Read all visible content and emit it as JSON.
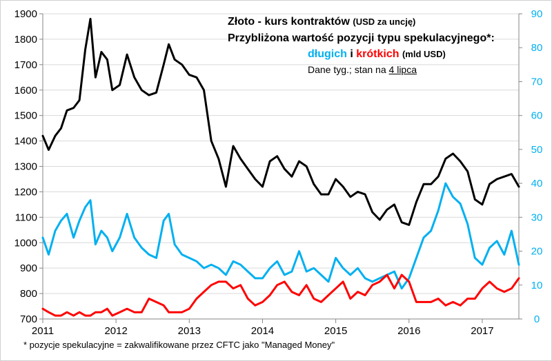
{
  "title": {
    "line1_main": "Złoto - kurs kontraktów",
    "line1_unit": "(USD za uncję)",
    "line2": "Przybliżona wartość pozycji typu spekulacyjnego*:",
    "long_label": "długich",
    "connector": "i",
    "short_label": "krótkich",
    "value_unit": "(mld USD)",
    "note_prefix": "Dane tyg.; stan na",
    "note_date": "4 lipca"
  },
  "footnote": "* pozycje spekulacyjne = zakwalifikowane przez CFTC jako \"Managed Money\"",
  "colors": {
    "price": "#000000",
    "long": "#00b0f0",
    "short": "#ff0000",
    "axis_right": "#00b0f0",
    "grid": "#d9d9d9"
  },
  "chart_data": {
    "type": "line",
    "x_axis": {
      "ticks": [
        "2011",
        "2012",
        "2013",
        "2014",
        "2015",
        "2016",
        "2017"
      ],
      "range": [
        "2011-01",
        "2017-07"
      ]
    },
    "y_left": {
      "ticks": [
        "700",
        "800",
        "900",
        "1000",
        "1100",
        "1200",
        "1300",
        "1400",
        "1500",
        "1600",
        "1700",
        "1800",
        "1900"
      ],
      "ylim": [
        700,
        1900
      ]
    },
    "y_right": {
      "ticks": [
        "0",
        "10",
        "20",
        "30",
        "40",
        "50",
        "60",
        "70",
        "80",
        "90"
      ],
      "ylim": [
        0,
        90
      ]
    },
    "grid": true,
    "series": [
      {
        "axis": "left",
        "color": "#000000",
        "x": [
          2011.0,
          2011.08,
          2011.17,
          2011.25,
          2011.33,
          2011.42,
          2011.5,
          2011.58,
          2011.65,
          2011.72,
          2011.8,
          2011.88,
          2011.95,
          2012.05,
          2012.15,
          2012.25,
          2012.35,
          2012.45,
          2012.55,
          2012.65,
          2012.72,
          2012.8,
          2012.9,
          2013.0,
          2013.1,
          2013.2,
          2013.3,
          2013.4,
          2013.5,
          2013.6,
          2013.7,
          2013.8,
          2013.9,
          2014.0,
          2014.1,
          2014.2,
          2014.3,
          2014.4,
          2014.5,
          2014.6,
          2014.7,
          2014.8,
          2014.9,
          2015.0,
          2015.1,
          2015.2,
          2015.3,
          2015.4,
          2015.5,
          2015.6,
          2015.7,
          2015.8,
          2015.9,
          2016.0,
          2016.1,
          2016.2,
          2016.3,
          2016.4,
          2016.5,
          2016.6,
          2016.7,
          2016.8,
          2016.9,
          2017.0,
          2017.1,
          2017.2,
          2017.3,
          2017.4,
          2017.5
        ],
        "values": [
          1420,
          1365,
          1420,
          1450,
          1520,
          1530,
          1560,
          1760,
          1880,
          1650,
          1750,
          1720,
          1600,
          1620,
          1740,
          1650,
          1600,
          1580,
          1590,
          1700,
          1780,
          1720,
          1700,
          1660,
          1650,
          1600,
          1400,
          1330,
          1220,
          1380,
          1330,
          1290,
          1250,
          1220,
          1320,
          1340,
          1290,
          1260,
          1320,
          1300,
          1230,
          1190,
          1190,
          1250,
          1220,
          1180,
          1200,
          1190,
          1120,
          1090,
          1130,
          1150,
          1080,
          1070,
          1160,
          1230,
          1230,
          1260,
          1330,
          1350,
          1320,
          1280,
          1170,
          1150,
          1230,
          1250,
          1260,
          1270,
          1220
        ]
      },
      {
        "axis": "right",
        "color": "#00b0f0",
        "x": [
          2011.0,
          2011.08,
          2011.17,
          2011.25,
          2011.33,
          2011.42,
          2011.5,
          2011.58,
          2011.65,
          2011.72,
          2011.8,
          2011.88,
          2011.95,
          2012.05,
          2012.15,
          2012.25,
          2012.35,
          2012.45,
          2012.55,
          2012.65,
          2012.72,
          2012.8,
          2012.9,
          2013.0,
          2013.1,
          2013.2,
          2013.3,
          2013.4,
          2013.5,
          2013.6,
          2013.7,
          2013.8,
          2013.9,
          2014.0,
          2014.1,
          2014.2,
          2014.3,
          2014.4,
          2014.5,
          2014.6,
          2014.7,
          2014.8,
          2014.9,
          2015.0,
          2015.1,
          2015.2,
          2015.3,
          2015.4,
          2015.5,
          2015.6,
          2015.7,
          2015.8,
          2015.9,
          2016.0,
          2016.1,
          2016.2,
          2016.3,
          2016.4,
          2016.5,
          2016.6,
          2016.7,
          2016.8,
          2016.9,
          2017.0,
          2017.1,
          2017.2,
          2017.3,
          2017.4,
          2017.5
        ],
        "values": [
          24,
          19,
          26,
          29,
          31,
          24,
          29,
          33,
          35,
          22,
          26,
          24,
          20,
          24,
          31,
          24,
          21,
          19,
          18,
          29,
          31,
          22,
          19,
          18,
          17,
          15,
          16,
          15,
          13,
          17,
          16,
          14,
          12,
          12,
          15,
          17,
          13,
          14,
          20,
          14,
          15,
          13,
          11,
          18,
          15,
          13,
          15,
          12,
          11,
          12,
          13,
          14,
          9,
          12,
          18,
          24,
          26,
          32,
          40,
          36,
          34,
          28,
          18,
          16,
          21,
          23,
          19,
          26,
          16
        ]
      },
      {
        "axis": "right",
        "color": "#ff0000",
        "x": [
          2011.0,
          2011.08,
          2011.17,
          2011.25,
          2011.33,
          2011.42,
          2011.5,
          2011.58,
          2011.65,
          2011.72,
          2011.8,
          2011.88,
          2011.95,
          2012.05,
          2012.15,
          2012.25,
          2012.35,
          2012.45,
          2012.55,
          2012.65,
          2012.72,
          2012.8,
          2012.9,
          2013.0,
          2013.1,
          2013.2,
          2013.3,
          2013.4,
          2013.5,
          2013.6,
          2013.7,
          2013.8,
          2013.9,
          2014.0,
          2014.1,
          2014.2,
          2014.3,
          2014.4,
          2014.5,
          2014.6,
          2014.7,
          2014.8,
          2014.9,
          2015.0,
          2015.1,
          2015.2,
          2015.3,
          2015.4,
          2015.5,
          2015.6,
          2015.7,
          2015.8,
          2015.9,
          2016.0,
          2016.1,
          2016.2,
          2016.3,
          2016.4,
          2016.5,
          2016.6,
          2016.7,
          2016.8,
          2016.9,
          2017.0,
          2017.1,
          2017.2,
          2017.3,
          2017.4,
          2017.5
        ],
        "values": [
          3,
          2,
          1,
          1,
          2,
          1,
          2,
          1,
          1,
          2,
          2,
          3,
          1,
          2,
          3,
          2,
          2,
          6,
          5,
          4,
          2,
          2,
          2,
          3,
          6,
          8,
          10,
          11,
          11,
          9,
          10,
          6,
          4,
          5,
          7,
          10,
          11,
          8,
          7,
          10,
          6,
          5,
          7,
          9,
          11,
          6,
          8,
          7,
          10,
          11,
          13,
          9,
          13,
          11,
          5,
          5,
          5,
          6,
          4,
          5,
          4,
          6,
          6,
          9,
          11,
          9,
          8,
          9,
          12
        ]
      }
    ]
  }
}
